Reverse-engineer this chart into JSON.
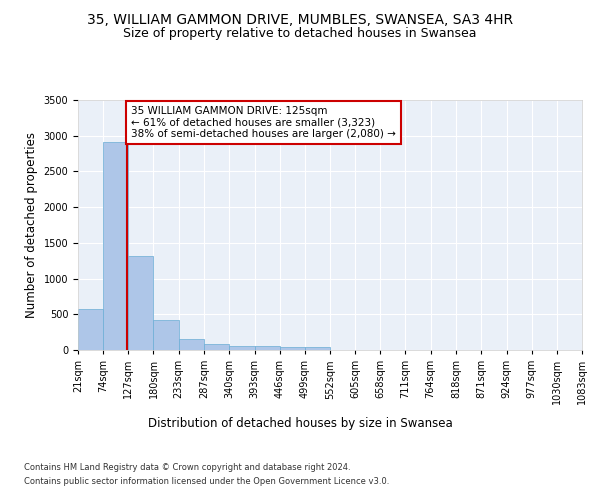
{
  "title": "35, WILLIAM GAMMON DRIVE, MUMBLES, SWANSEA, SA3 4HR",
  "subtitle": "Size of property relative to detached houses in Swansea",
  "xlabel": "Distribution of detached houses by size in Swansea",
  "ylabel": "Number of detached properties",
  "bin_edges": [
    21,
    74,
    127,
    180,
    233,
    287,
    340,
    393,
    446,
    499,
    552,
    605,
    658,
    711,
    764,
    818,
    871,
    924,
    977,
    1030,
    1083
  ],
  "bin_counts": [
    570,
    2910,
    1320,
    415,
    155,
    80,
    60,
    55,
    45,
    40,
    0,
    0,
    0,
    0,
    0,
    0,
    0,
    0,
    0,
    0
  ],
  "bar_color": "#aec6e8",
  "bar_edgecolor": "#6aadd5",
  "property_size": 125,
  "red_line_color": "#cc0000",
  "annotation_text": "35 WILLIAM GAMMON DRIVE: 125sqm\n← 61% of detached houses are smaller (3,323)\n38% of semi-detached houses are larger (2,080) →",
  "annotation_box_edgecolor": "#cc0000",
  "annotation_box_facecolor": "#ffffff",
  "ylim": [
    0,
    3500
  ],
  "yticks": [
    0,
    500,
    1000,
    1500,
    2000,
    2500,
    3000,
    3500
  ],
  "background_color": "#eaf0f8",
  "grid_color": "#ffffff",
  "footer_line1": "Contains HM Land Registry data © Crown copyright and database right 2024.",
  "footer_line2": "Contains public sector information licensed under the Open Government Licence v3.0.",
  "title_fontsize": 10,
  "subtitle_fontsize": 9,
  "axis_label_fontsize": 8.5,
  "tick_fontsize": 7,
  "annotation_fontsize": 7.5,
  "footer_fontsize": 6
}
